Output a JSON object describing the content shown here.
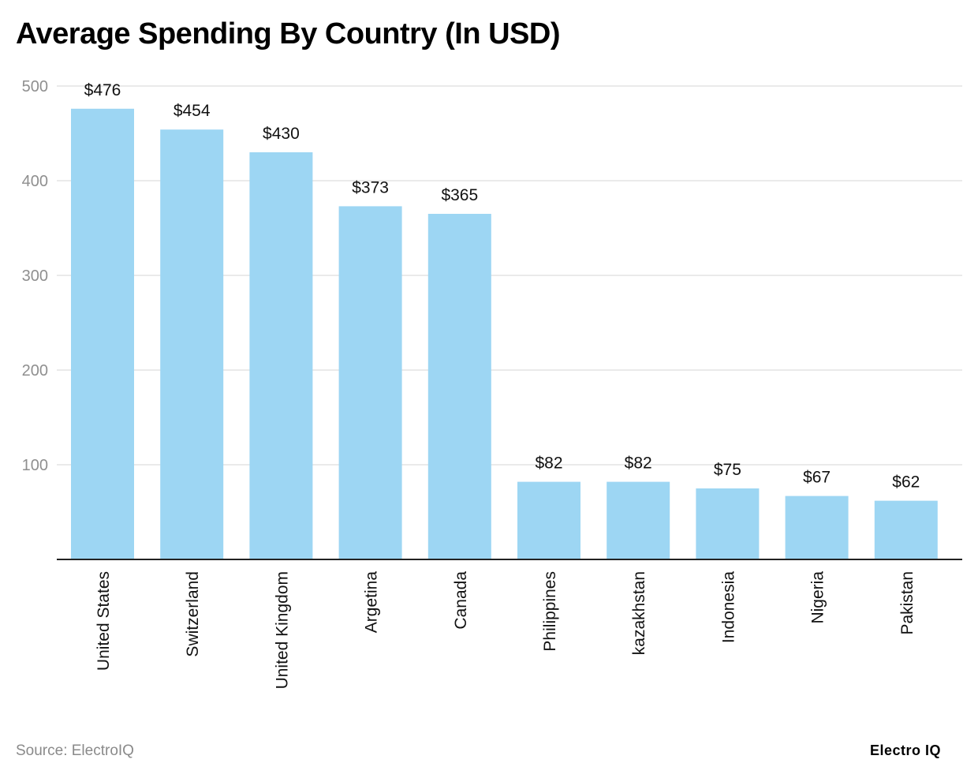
{
  "chart_data": {
    "type": "bar",
    "title": "Average Spending By Country (In USD)",
    "categories": [
      "United States",
      "Switzerland",
      "United Kingdom",
      "Argetina",
      "Canada",
      "Philippines",
      "kazakhstan",
      "Indonesia",
      "Nigeria",
      "Pakistan"
    ],
    "values": [
      476,
      454,
      430,
      373,
      365,
      82,
      82,
      75,
      67,
      62
    ],
    "data_labels": [
      "$476",
      "$454",
      "$430",
      "$373",
      "$365",
      "$82",
      "$82",
      "$75",
      "$67",
      "$62"
    ],
    "ylim": [
      0,
      500
    ],
    "yticks": [
      100,
      200,
      300,
      400,
      500
    ],
    "xlabel": "",
    "ylabel": "",
    "grid": true,
    "bar_color": "#9dd6f3"
  },
  "footer": {
    "source": "Source: ElectroIQ",
    "logo": "Electro IQ"
  }
}
